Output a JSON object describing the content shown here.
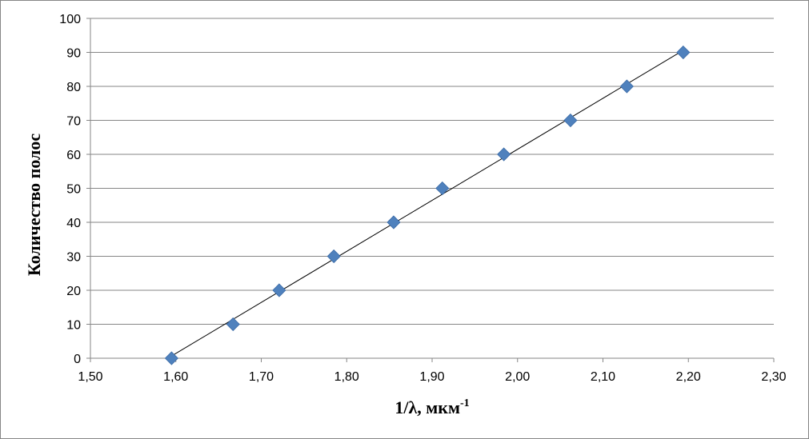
{
  "chart_data": {
    "type": "scatter",
    "title": "",
    "xlabel": "1/λ, мкм",
    "xlabel_superscript": "-1",
    "ylabel": "Количество полос",
    "xlim": [
      1.5,
      2.3
    ],
    "ylim": [
      0,
      100
    ],
    "x_ticks": [
      "1,50",
      "1,60",
      "1,70",
      "1,80",
      "1,90",
      "2,00",
      "2,10",
      "2,20",
      "2,30"
    ],
    "y_ticks": [
      "0",
      "10",
      "20",
      "30",
      "40",
      "50",
      "60",
      "70",
      "80",
      "90",
      "100"
    ],
    "grid": "horizontal",
    "legend": "none",
    "series": [
      {
        "marker": "diamond",
        "color": "#4f81bd",
        "points": [
          [
            1.595,
            0
          ],
          [
            1.667,
            10
          ],
          [
            1.721,
            20
          ],
          [
            1.785,
            30
          ],
          [
            1.855,
            40
          ],
          [
            1.912,
            50
          ],
          [
            1.984,
            60
          ],
          [
            2.062,
            70
          ],
          [
            2.128,
            80
          ],
          [
            2.194,
            90
          ]
        ]
      }
    ],
    "trendline": {
      "type": "linear",
      "color": "#000000"
    }
  }
}
